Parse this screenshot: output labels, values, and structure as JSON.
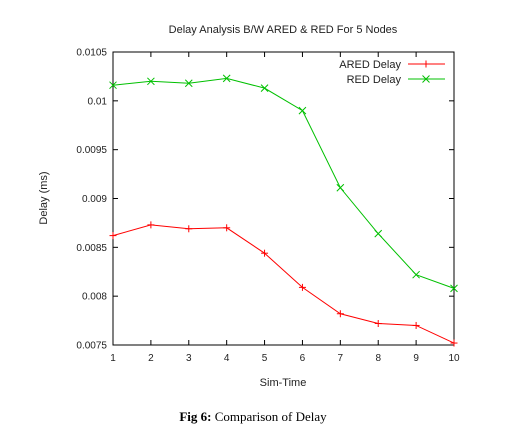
{
  "chart_data": {
    "type": "line",
    "title": "Delay Analysis B/W ARED & RED For 5 Nodes",
    "xlabel": "Sim-Time",
    "ylabel": "Delay (ms)",
    "xlim": [
      1,
      10
    ],
    "ylim": [
      0.0075,
      0.0105
    ],
    "x_ticks": [
      "1",
      "2",
      "3",
      "4",
      "5",
      "6",
      "7",
      "8",
      "9",
      "10"
    ],
    "y_ticks": [
      "0.0075",
      "0.008",
      "0.0085",
      "0.009",
      "0.0095",
      "0.01",
      "0.0105"
    ],
    "y_tick_values": [
      0.0075,
      0.008,
      0.0085,
      0.009,
      0.0095,
      0.01,
      0.0105
    ],
    "grid": false,
    "legend_position": "top-right",
    "x": [
      1,
      2,
      3,
      4,
      5,
      6,
      7,
      8,
      9,
      10
    ],
    "series": [
      {
        "name": "ARED Delay",
        "color": "#ff0000",
        "marker": "plus",
        "values": [
          0.00862,
          0.00873,
          0.00869,
          0.0087,
          0.00844,
          0.00809,
          0.00782,
          0.00772,
          0.0077,
          0.00752
        ]
      },
      {
        "name": "RED Delay",
        "color": "#00c000",
        "marker": "x",
        "values": [
          0.01016,
          0.0102,
          0.01018,
          0.01023,
          0.01013,
          0.0099,
          0.00911,
          0.00864,
          0.00822,
          0.00808
        ]
      }
    ]
  },
  "caption": {
    "label": "Fig 6:",
    "text": " Comparison of Delay"
  }
}
